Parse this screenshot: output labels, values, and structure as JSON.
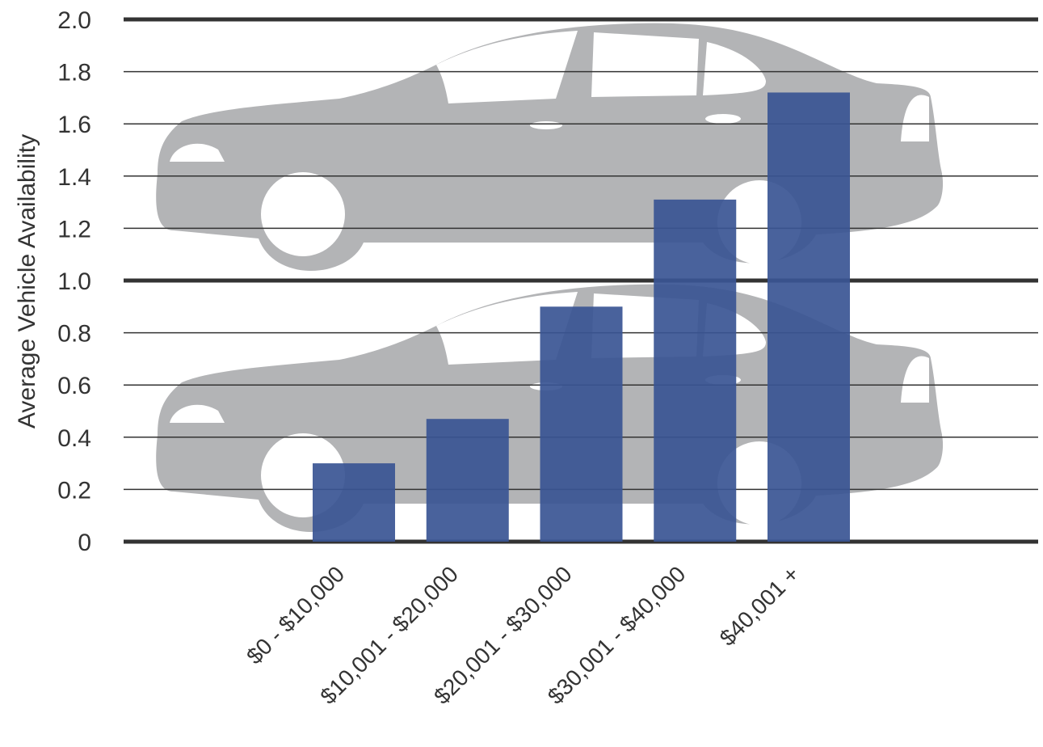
{
  "chart_data": {
    "type": "bar",
    "categories": [
      "$0 - $10,000",
      "$10,001 - $20,000",
      "$20,001 - $30,000",
      "$30,001 - $40,000",
      "$40,001 +"
    ],
    "values": [
      0.3,
      0.47,
      0.9,
      1.31,
      1.72
    ],
    "ylabel": "Average Vehicle Availability",
    "xlabel": "",
    "ylim": [
      0,
      2.0
    ],
    "yticks": [
      "0",
      "0.2",
      "0.4",
      "0.6",
      "0.8",
      "1.0",
      "1.2",
      "1.4",
      "1.6",
      "1.8",
      "2.0"
    ],
    "grid": true,
    "legend": "none",
    "background_pictograph": "car-silhouette",
    "colors": {
      "bar": "#3a5594",
      "car": "#b3b4b6",
      "gridline": "#333333",
      "text": "#333333"
    }
  }
}
